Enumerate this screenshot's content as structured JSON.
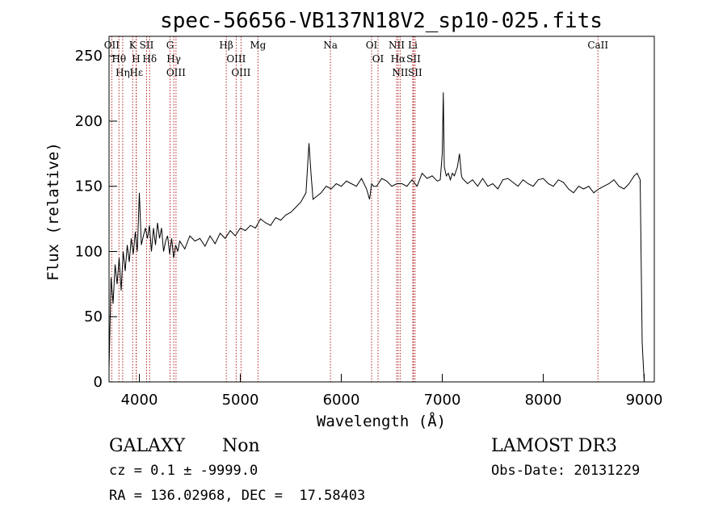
{
  "chart_data": {
    "type": "line",
    "title": "spec-56656-VB137N18V2_sp10-025.fits",
    "xlabel": "Wavelength (Å)",
    "ylabel": "Flux (relative)",
    "xlim": [
      3700,
      9100
    ],
    "ylim": [
      0,
      265
    ],
    "xticks": [
      4000,
      5000,
      6000,
      7000,
      8000,
      9000
    ],
    "yticks": [
      0,
      50,
      100,
      150,
      200,
      250
    ],
    "grid": false,
    "line_color": "#000000",
    "marker_color": "#b22222",
    "spectrum": {
      "x": [
        3700,
        3720,
        3740,
        3760,
        3780,
        3800,
        3820,
        3840,
        3860,
        3880,
        3900,
        3920,
        3940,
        3960,
        3980,
        4000,
        4020,
        4040,
        4060,
        4080,
        4100,
        4120,
        4140,
        4160,
        4180,
        4200,
        4220,
        4240,
        4260,
        4280,
        4300,
        4320,
        4340,
        4360,
        4380,
        4400,
        4450,
        4500,
        4550,
        4600,
        4650,
        4700,
        4750,
        4800,
        4850,
        4900,
        4950,
        5000,
        5050,
        5100,
        5150,
        5200,
        5250,
        5300,
        5350,
        5400,
        5450,
        5500,
        5550,
        5600,
        5650,
        5680,
        5700,
        5720,
        5750,
        5800,
        5850,
        5900,
        5950,
        6000,
        6050,
        6100,
        6150,
        6200,
        6250,
        6280,
        6300,
        6320,
        6350,
        6400,
        6450,
        6500,
        6550,
        6600,
        6650,
        6700,
        6750,
        6800,
        6850,
        6900,
        6950,
        6980,
        7000,
        7010,
        7020,
        7040,
        7060,
        7080,
        7100,
        7120,
        7150,
        7170,
        7190,
        7200,
        7250,
        7300,
        7350,
        7400,
        7450,
        7500,
        7550,
        7600,
        7650,
        7700,
        7750,
        7800,
        7850,
        7900,
        7950,
        8000,
        8050,
        8100,
        8150,
        8200,
        8250,
        8300,
        8350,
        8400,
        8450,
        8500,
        8550,
        8600,
        8650,
        8700,
        8750,
        8800,
        8850,
        8900,
        8930,
        8960,
        8980,
        9000
      ],
      "y": [
        10,
        80,
        60,
        90,
        75,
        95,
        70,
        100,
        85,
        105,
        92,
        110,
        98,
        115,
        100,
        145,
        105,
        112,
        118,
        110,
        120,
        100,
        118,
        105,
        122,
        110,
        118,
        100,
        108,
        112,
        98,
        110,
        95,
        105,
        100,
        108,
        102,
        112,
        108,
        110,
        104,
        112,
        106,
        114,
        110,
        116,
        112,
        118,
        116,
        120,
        118,
        125,
        122,
        120,
        126,
        124,
        128,
        130,
        134,
        138,
        145,
        183,
        160,
        140,
        142,
        145,
        150,
        148,
        152,
        150,
        154,
        152,
        150,
        156,
        148,
        140,
        152,
        150,
        150,
        156,
        154,
        150,
        152,
        152,
        150,
        155,
        150,
        160,
        156,
        158,
        154,
        155,
        175,
        222,
        165,
        158,
        160,
        155,
        160,
        158,
        165,
        175,
        158,
        156,
        152,
        155,
        150,
        156,
        150,
        152,
        148,
        155,
        156,
        153,
        150,
        155,
        152,
        150,
        155,
        156,
        152,
        150,
        155,
        153,
        148,
        145,
        150,
        148,
        150,
        145,
        148,
        150,
        152,
        155,
        150,
        148,
        152,
        158,
        160,
        155,
        30,
        0
      ]
    },
    "lines": [
      {
        "name": "OII",
        "wave": 3727
      },
      {
        "name": "Hθ",
        "wave": 3798
      },
      {
        "name": "Hη",
        "wave": 3835
      },
      {
        "name": "K",
        "wave": 3934
      },
      {
        "name": "H",
        "wave": 3968
      },
      {
        "name": "Hε",
        "wave": 3970
      },
      {
        "name": "Hδ",
        "wave": 4102
      },
      {
        "name": "SII",
        "wave": 4072
      },
      {
        "name": "G",
        "wave": 4304
      },
      {
        "name": "Hγ",
        "wave": 4341
      },
      {
        "name": "OIII",
        "wave": 4363
      },
      {
        "name": "Hβ",
        "wave": 4861
      },
      {
        "name": "OIII",
        "wave": 4959
      },
      {
        "name": "OIII",
        "wave": 5007
      },
      {
        "name": "Mg",
        "wave": 5175
      },
      {
        "name": "Na",
        "wave": 5893
      },
      {
        "name": "OI",
        "wave": 6300
      },
      {
        "name": "OI",
        "wave": 6364
      },
      {
        "name": "NII",
        "wave": 6548
      },
      {
        "name": "Hα",
        "wave": 6563
      },
      {
        "name": "NII",
        "wave": 6583
      },
      {
        "name": "Li",
        "wave": 6708
      },
      {
        "name": "SII",
        "wave": 6716
      },
      {
        "name": "SII",
        "wave": 6731
      },
      {
        "name": "CaII",
        "wave": 8542
      }
    ]
  },
  "info": {
    "object_class": "GALAXY",
    "subclass": "Non",
    "survey": "LAMOST DR3",
    "cz_line": "cz = 0.1 ± -9999.0",
    "obs_date_line": "Obs-Date: 20131229",
    "radec_line": "RA = 136.02968, DEC =  17.58403"
  }
}
